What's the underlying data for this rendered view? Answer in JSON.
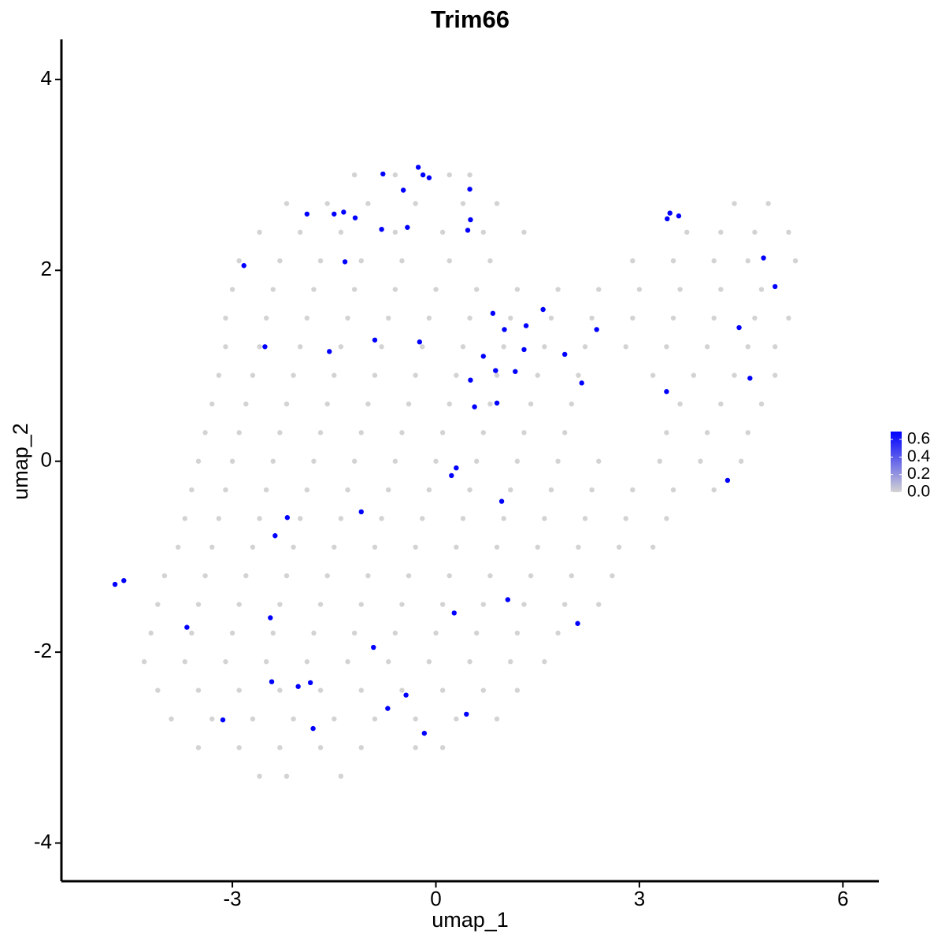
{
  "chart_data": {
    "type": "scatter",
    "title": "Trim66",
    "x_label": "umap_1",
    "y_label": "umap_2",
    "xlim": [
      -5.52,
      6.53
    ],
    "ylim": [
      -4.4,
      4.42
    ],
    "xticks": [
      -3,
      0,
      3,
      6
    ],
    "yticks": [
      -4,
      -2,
      0,
      2,
      4
    ],
    "colorscale": {
      "low": "#d3d3d3",
      "high": "#0000ff"
    },
    "colorbar": {
      "range": [
        0,
        0.69
      ],
      "ticks": [
        {
          "value": 0,
          "label": "0.0"
        },
        {
          "value": 0.2,
          "label": "0.2"
        },
        0.4,
        0.6
      ]
    },
    "series": [
      {
        "value": 0,
        "x": [
          -1.2,
          -0.6,
          0.2,
          0.5,
          -2.2,
          -1.6,
          -1.0,
          -0.3,
          0.4,
          0.9,
          4.4,
          4.9,
          -2.6,
          -2.0,
          -1.4,
          -0.6,
          0.1,
          0.7,
          1.3,
          3.7,
          4.2,
          4.7,
          5.2,
          -2.9,
          -2.3,
          -1.7,
          -1.1,
          -0.5,
          0.2,
          0.8,
          2.9,
          3.5,
          4.1,
          4.6,
          5.3,
          -3.0,
          -2.4,
          -1.8,
          -1.2,
          -0.6,
          0.0,
          0.6,
          1.2,
          1.8,
          2.4,
          3.0,
          3.6,
          4.2,
          4.8,
          -3.1,
          -2.5,
          -1.9,
          -1.3,
          -0.7,
          -0.1,
          0.5,
          1.1,
          1.7,
          2.3,
          2.9,
          3.5,
          4.1,
          4.7,
          5.2,
          -3.1,
          -2.6,
          -2.0,
          -1.4,
          -0.8,
          -0.2,
          0.4,
          1.0,
          1.6,
          2.2,
          2.8,
          3.4,
          4.0,
          4.6,
          5.0,
          -3.2,
          -2.7,
          -2.1,
          -1.5,
          -0.9,
          -0.3,
          0.3,
          0.9,
          1.5,
          2.1,
          3.2,
          3.8,
          4.4,
          5.0,
          -3.3,
          -2.8,
          -2.2,
          -1.6,
          -1.0,
          -0.4,
          0.2,
          0.8,
          1.4,
          2.0,
          3.6,
          4.2,
          4.8,
          -3.4,
          -2.9,
          -2.3,
          -1.7,
          -1.1,
          -0.5,
          0.1,
          0.7,
          1.3,
          1.9,
          3.4,
          4.0,
          4.6,
          -3.5,
          -3.0,
          -2.4,
          -1.8,
          -1.2,
          -0.6,
          0.0,
          0.6,
          1.2,
          1.8,
          2.4,
          3.3,
          3.9,
          4.5,
          -3.6,
          -3.1,
          -2.5,
          -1.9,
          -1.3,
          -0.7,
          -0.1,
          0.5,
          1.1,
          1.7,
          2.3,
          2.9,
          3.5,
          4.1,
          -3.7,
          -3.2,
          -2.6,
          -2.0,
          -1.4,
          -0.8,
          -0.2,
          0.4,
          1.0,
          1.6,
          2.2,
          2.8,
          3.4,
          -3.8,
          -3.3,
          -2.7,
          -2.1,
          -1.5,
          -0.9,
          -0.3,
          0.3,
          0.9,
          1.5,
          2.1,
          2.7,
          3.2,
          -4.0,
          -3.4,
          -2.8,
          -2.2,
          -1.6,
          -1.0,
          -0.4,
          0.2,
          0.8,
          1.4,
          2.0,
          2.6,
          -4.1,
          -3.5,
          -2.9,
          -2.3,
          -1.7,
          -1.1,
          -0.5,
          0.1,
          0.7,
          1.3,
          1.9,
          2.4,
          -4.2,
          -3.6,
          -3.0,
          -2.4,
          -1.8,
          -1.2,
          -0.6,
          0.0,
          0.6,
          1.2,
          1.8,
          -4.3,
          -3.7,
          -3.1,
          -2.5,
          -1.9,
          -1.3,
          -0.7,
          -0.1,
          0.5,
          1.1,
          1.6,
          -4.1,
          -3.5,
          -2.9,
          -2.3,
          -1.7,
          -1.1,
          -0.5,
          0.1,
          0.7,
          1.2,
          -3.9,
          -3.3,
          -2.7,
          -2.1,
          -1.5,
          -0.9,
          -0.3,
          0.3,
          0.9,
          -3.5,
          -2.9,
          -2.3,
          -1.7,
          -1.1,
          -0.3,
          0.1,
          -2.6,
          -2.2,
          -1.4
        ],
        "y": [
          3.0,
          3.0,
          3.0,
          3.0,
          2.7,
          2.7,
          2.7,
          2.7,
          2.7,
          2.7,
          2.7,
          2.7,
          2.4,
          2.4,
          2.4,
          2.4,
          2.4,
          2.4,
          2.4,
          2.4,
          2.4,
          2.4,
          2.4,
          2.1,
          2.1,
          2.1,
          2.1,
          2.1,
          2.1,
          2.1,
          2.1,
          2.1,
          2.1,
          2.1,
          2.1,
          1.8,
          1.8,
          1.8,
          1.8,
          1.8,
          1.8,
          1.8,
          1.8,
          1.8,
          1.8,
          1.8,
          1.8,
          1.8,
          1.8,
          1.5,
          1.5,
          1.5,
          1.5,
          1.5,
          1.5,
          1.5,
          1.5,
          1.5,
          1.5,
          1.5,
          1.5,
          1.5,
          1.5,
          1.5,
          1.2,
          1.2,
          1.2,
          1.2,
          1.2,
          1.2,
          1.2,
          1.2,
          1.2,
          1.2,
          1.2,
          1.2,
          1.2,
          1.2,
          1.2,
          0.9,
          0.9,
          0.9,
          0.9,
          0.9,
          0.9,
          0.9,
          0.9,
          0.9,
          0.9,
          0.9,
          0.9,
          0.9,
          0.9,
          0.6,
          0.6,
          0.6,
          0.6,
          0.6,
          0.6,
          0.6,
          0.6,
          0.6,
          0.6,
          0.6,
          0.6,
          0.6,
          0.3,
          0.3,
          0.3,
          0.3,
          0.3,
          0.3,
          0.3,
          0.3,
          0.3,
          0.3,
          0.3,
          0.3,
          0.3,
          0.0,
          0.0,
          0.0,
          0.0,
          0.0,
          0.0,
          0.0,
          0.0,
          0.0,
          0.0,
          0.0,
          0.0,
          0.0,
          0.0,
          -0.3,
          -0.3,
          -0.3,
          -0.3,
          -0.3,
          -0.3,
          -0.3,
          -0.3,
          -0.3,
          -0.3,
          -0.3,
          -0.3,
          -0.3,
          -0.3,
          -0.6,
          -0.6,
          -0.6,
          -0.6,
          -0.6,
          -0.6,
          -0.6,
          -0.6,
          -0.6,
          -0.6,
          -0.6,
          -0.6,
          -0.6,
          -0.9,
          -0.9,
          -0.9,
          -0.9,
          -0.9,
          -0.9,
          -0.9,
          -0.9,
          -0.9,
          -0.9,
          -0.9,
          -0.9,
          -0.9,
          -1.2,
          -1.2,
          -1.2,
          -1.2,
          -1.2,
          -1.2,
          -1.2,
          -1.2,
          -1.2,
          -1.2,
          -1.2,
          -1.2,
          -1.5,
          -1.5,
          -1.5,
          -1.5,
          -1.5,
          -1.5,
          -1.5,
          -1.5,
          -1.5,
          -1.5,
          -1.5,
          -1.5,
          -1.8,
          -1.8,
          -1.8,
          -1.8,
          -1.8,
          -1.8,
          -1.8,
          -1.8,
          -1.8,
          -1.8,
          -1.8,
          -2.1,
          -2.1,
          -2.1,
          -2.1,
          -2.1,
          -2.1,
          -2.1,
          -2.1,
          -2.1,
          -2.1,
          -2.1,
          -2.4,
          -2.4,
          -2.4,
          -2.4,
          -2.4,
          -2.4,
          -2.4,
          -2.4,
          -2.4,
          -2.4,
          -2.7,
          -2.7,
          -2.7,
          -2.7,
          -2.7,
          -2.7,
          -2.7,
          -2.7,
          -2.7,
          -3.0,
          -3.0,
          -3.0,
          -3.0,
          -3.0,
          -3.0,
          -3.0,
          -3.3,
          -3.3,
          -3.3
        ]
      },
      {
        "value": 0.69,
        "x": [
          -4.73,
          -4.6,
          -3.67,
          -3.14,
          -2.83,
          -2.52,
          -2.44,
          -2.42,
          -2.37,
          -2.19,
          -2.03,
          -1.9,
          -1.85,
          -1.81,
          -1.57,
          -1.5,
          -1.36,
          -1.34,
          -1.19,
          -1.1,
          -0.92,
          -0.9,
          -0.8,
          -0.78,
          -0.71,
          -0.48,
          -0.44,
          -0.42,
          -0.26,
          -0.24,
          -0.19,
          -0.17,
          -0.1,
          0.23,
          0.3,
          0.27,
          0.45,
          0.47,
          0.5,
          0.51,
          0.51,
          0.57,
          0.7,
          0.84,
          0.88,
          0.9,
          0.97,
          1.01,
          1.06,
          1.17,
          1.3,
          1.33,
          1.58,
          1.9,
          2.09,
          2.15,
          2.37,
          3.4,
          3.41,
          3.45,
          3.58,
          4.3,
          4.47,
          4.63,
          4.83,
          5.0
        ],
        "y": [
          -1.29,
          -1.25,
          -1.74,
          -2.71,
          2.05,
          1.2,
          -1.64,
          -2.31,
          -0.78,
          -0.59,
          -2.36,
          2.59,
          -2.32,
          -2.8,
          1.15,
          2.59,
          2.61,
          2.09,
          2.55,
          -0.53,
          -1.95,
          1.27,
          2.43,
          3.01,
          -2.59,
          2.84,
          -2.45,
          2.45,
          3.08,
          1.25,
          3.0,
          -2.85,
          2.97,
          -0.15,
          -0.07,
          -1.59,
          -2.65,
          2.42,
          2.85,
          2.53,
          0.85,
          0.57,
          1.1,
          1.55,
          0.95,
          0.61,
          -0.42,
          1.38,
          -1.45,
          0.94,
          1.17,
          1.42,
          1.59,
          1.12,
          -1.7,
          0.82,
          1.38,
          0.73,
          2.54,
          2.6,
          2.57,
          -0.2,
          1.4,
          0.87,
          2.13,
          1.83
        ]
      }
    ]
  }
}
